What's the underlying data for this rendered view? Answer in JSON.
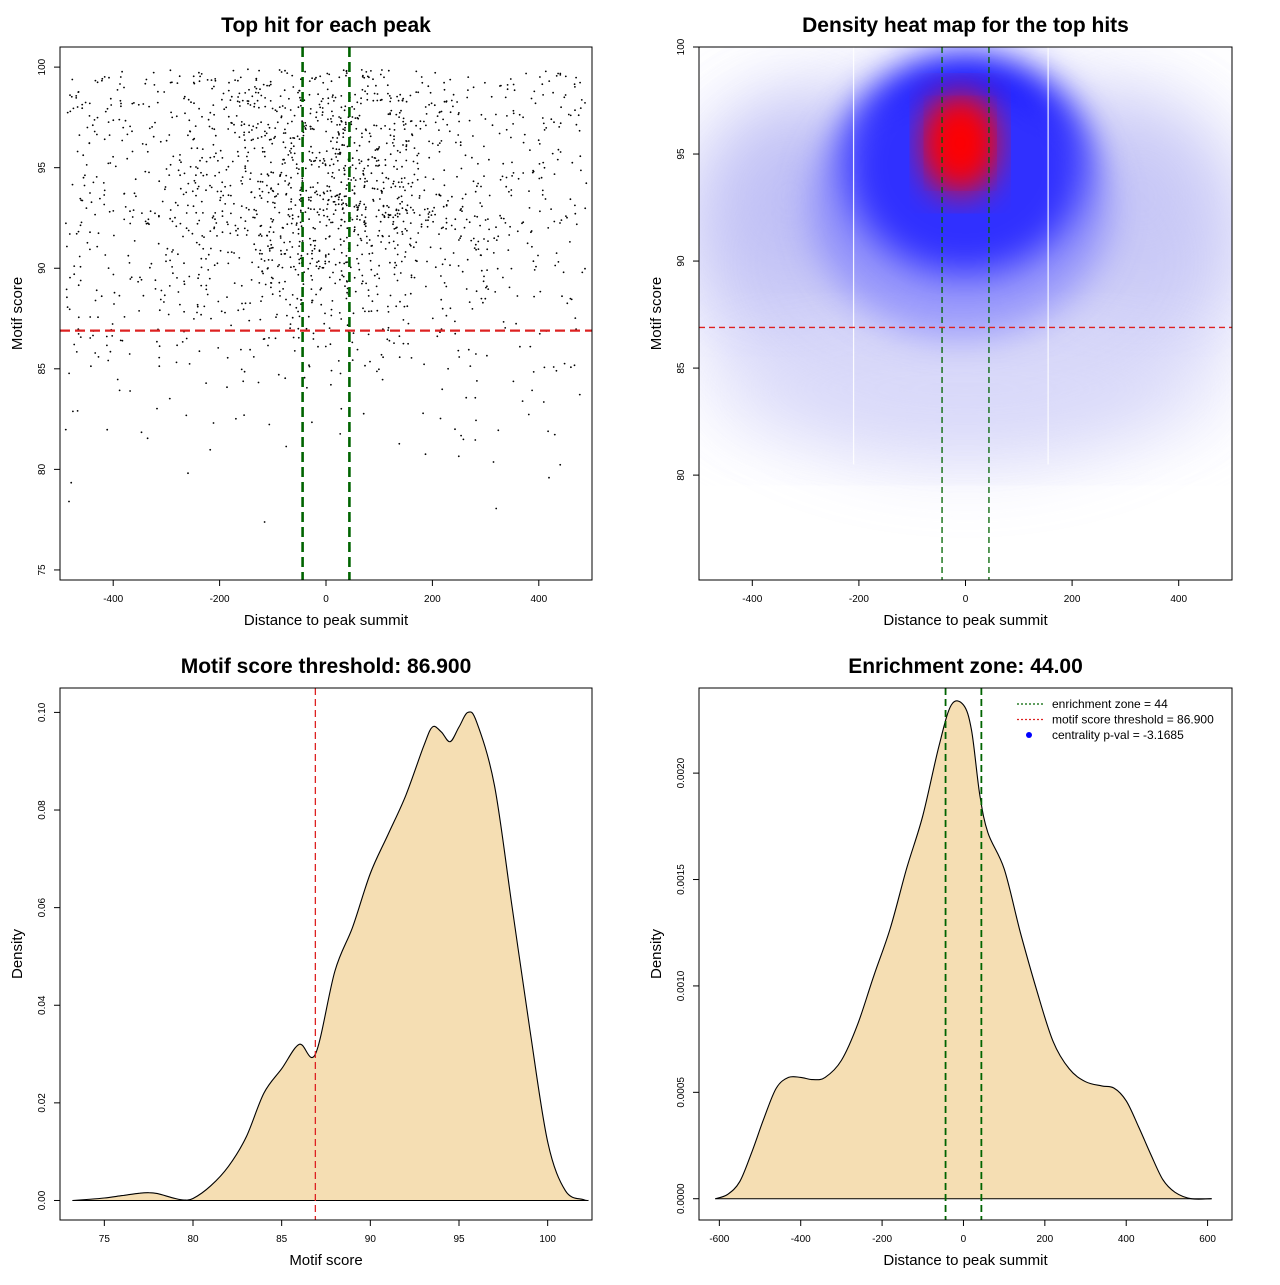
{
  "chart_data": [
    {
      "type": "scatter",
      "title": "Top hit for each peak",
      "xlabel": "Distance to peak summit",
      "ylabel": "Motif score",
      "xlim": [
        -500,
        500
      ],
      "ylim": [
        74.5,
        101
      ],
      "xticks": [
        -400,
        -200,
        0,
        200,
        400
      ],
      "yticks": [
        75,
        80,
        85,
        90,
        95,
        100
      ],
      "points": {
        "count": 1900,
        "x_range": [
          -490,
          490
        ],
        "y_range": [
          75.4,
          99.9
        ],
        "x_center": 0,
        "y_center": 93.5
      },
      "annotations": {
        "enrichment_zone_lines_x": [
          -44,
          44
        ],
        "enrichment_zone_color": "#006400",
        "threshold_line_y": 86.9,
        "threshold_color": "#dd2222"
      }
    },
    {
      "type": "heatmap",
      "title": "Density heat map for the top hits",
      "xlabel": "Distance to peak summit",
      "ylabel": "Motif score",
      "xlim": [
        -500,
        500
      ],
      "ylim": [
        75.1,
        100
      ],
      "xticks": [
        -400,
        -200,
        0,
        200,
        400
      ],
      "yticks": [
        80,
        85,
        90,
        95,
        100
      ],
      "density_peak": {
        "x": -10,
        "y": 95.5
      },
      "colors": {
        "low": "#ffffff",
        "mid": "#0000ff",
        "high": "#ff0000"
      },
      "annotations": {
        "enrichment_zone_lines_x": [
          -44,
          44
        ],
        "threshold_line_y": 86.9
      }
    },
    {
      "type": "area",
      "title": "Motif score threshold: 86.900",
      "xlabel": "Motif score",
      "ylabel": "Density",
      "xlim": [
        72.5,
        102.5
      ],
      "ylim": [
        -0.004,
        0.105
      ],
      "xticks": [
        75,
        80,
        85,
        90,
        95,
        100
      ],
      "yticks": [
        0.0,
        0.02,
        0.04,
        0.06,
        0.08,
        0.1
      ],
      "ytick_labels": [
        "0.00",
        "0.02",
        "0.04",
        "0.06",
        "0.08",
        "0.10"
      ],
      "x": [
        73.2,
        74,
        75,
        76,
        77,
        77.5,
        78,
        79,
        79.5,
        80,
        81,
        82,
        83,
        84,
        85,
        86,
        86.9,
        88,
        89,
        90,
        91,
        92,
        93,
        93.5,
        94,
        94.5,
        95,
        95.5,
        96,
        97,
        98,
        99,
        100,
        101,
        102,
        102.3
      ],
      "y": [
        0.0,
        0.0002,
        0.0005,
        0.001,
        0.0015,
        0.0016,
        0.0014,
        0.0004,
        0.0001,
        0.0004,
        0.003,
        0.007,
        0.013,
        0.022,
        0.027,
        0.032,
        0.03,
        0.047,
        0.056,
        0.067,
        0.075,
        0.083,
        0.093,
        0.097,
        0.096,
        0.094,
        0.097,
        0.1,
        0.098,
        0.085,
        0.06,
        0.035,
        0.012,
        0.002,
        0.0002,
        0.0
      ],
      "fill_color": "#f5deb3",
      "annotations": {
        "threshold_line_x": 86.9,
        "threshold_color": "#dd2222"
      }
    },
    {
      "type": "area",
      "title": "Enrichment zone: 44.00",
      "xlabel": "Distance to peak summit",
      "ylabel": "Density",
      "xlim": [
        -650,
        660
      ],
      "ylim": [
        -0.0001,
        0.0024
      ],
      "xticks": [
        -600,
        -400,
        -200,
        0,
        200,
        400,
        600
      ],
      "yticks": [
        0.0,
        0.0005,
        0.001,
        0.0015,
        0.002
      ],
      "ytick_labels": [
        "0.0000",
        "0.0005",
        "0.0010",
        "0.0015",
        "0.0020"
      ],
      "x": [
        -610,
        -580,
        -550,
        -520,
        -490,
        -460,
        -430,
        -400,
        -370,
        -340,
        -300,
        -260,
        -220,
        -180,
        -140,
        -100,
        -60,
        -30,
        0,
        20,
        40,
        60,
        100,
        140,
        180,
        220,
        260,
        300,
        340,
        370,
        400,
        430,
        460,
        490,
        520,
        560,
        610
      ],
      "y": [
        0.0,
        2e-05,
        8e-05,
        0.00022,
        0.00038,
        0.00052,
        0.00057,
        0.00057,
        0.00056,
        0.00057,
        0.00065,
        0.00082,
        0.00105,
        0.00127,
        0.00155,
        0.0018,
        0.00213,
        0.00232,
        0.00232,
        0.0022,
        0.0019,
        0.00172,
        0.00155,
        0.00125,
        0.00098,
        0.00074,
        0.00061,
        0.00055,
        0.00053,
        0.00052,
        0.00046,
        0.00034,
        0.00021,
        9e-05,
        3e-05,
        0.0,
        0.0
      ],
      "fill_color": "#f5deb3",
      "annotations": {
        "enrichment_zone_lines_x": [
          -44,
          44
        ],
        "enrichment_zone_color": "#006400"
      },
      "legend": {
        "position": "top-right",
        "entries": [
          {
            "label": "enrichment zone = 44",
            "style": "dotted-line",
            "color": "#006400"
          },
          {
            "label": "motif score threshold = 86.900",
            "style": "dotted-line",
            "color": "#dd2222"
          },
          {
            "label": "centrality p-val = -3.1685",
            "style": "dot",
            "color": "#0000ff"
          }
        ]
      }
    }
  ]
}
